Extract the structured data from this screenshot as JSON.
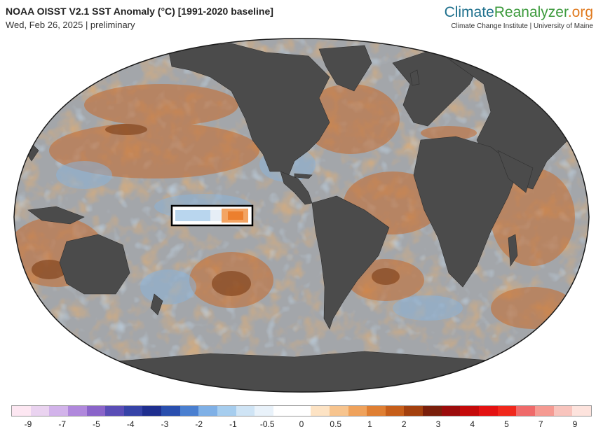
{
  "header": {
    "title": "NOAA OISST V2.1 SST Anomaly (°C) [1991-2020 baseline]",
    "subtitle": "Wed, Feb 26, 2025 | preliminary"
  },
  "brand": {
    "part1": "Climate",
    "part2": "Reanalyzer",
    "part3": ".org",
    "tagline": "Climate Change Institute | University of Maine"
  },
  "map": {
    "projection": "robinson-like global",
    "land_color": "#4a4a4a",
    "ocean_neutral_color": "#a0a4a8",
    "warm_anomaly_color": "#c56a2a",
    "cool_anomaly_color": "#8fb6d9",
    "highlight_box": "Niño 3.4 region outline"
  },
  "legend": {
    "ticks": [
      "-9",
      "-7",
      "-5",
      "-4",
      "-3",
      "-2",
      "-1",
      "-0.5",
      "0",
      "0.5",
      "1",
      "2",
      "3",
      "4",
      "5",
      "7",
      "9"
    ],
    "colors": [
      "#fde7f2",
      "#ead3f0",
      "#d2b3ea",
      "#b088dc",
      "#8a64c9",
      "#5a4db6",
      "#3643a7",
      "#1f2f8f",
      "#2a4fae",
      "#4a7fd0",
      "#7fb0e6",
      "#a6cdee",
      "#cfe4f5",
      "#e9f2fa",
      "#ffffff",
      "#ffffff",
      "#fde3c4",
      "#f7c48e",
      "#efa25c",
      "#df7f33",
      "#c65e1a",
      "#a3400e",
      "#7a1f0b",
      "#9b0c0c",
      "#c40a0a",
      "#e31212",
      "#f0281c",
      "#ef6a6a",
      "#f59a92",
      "#f8c4bd",
      "#fde3dd"
    ]
  }
}
